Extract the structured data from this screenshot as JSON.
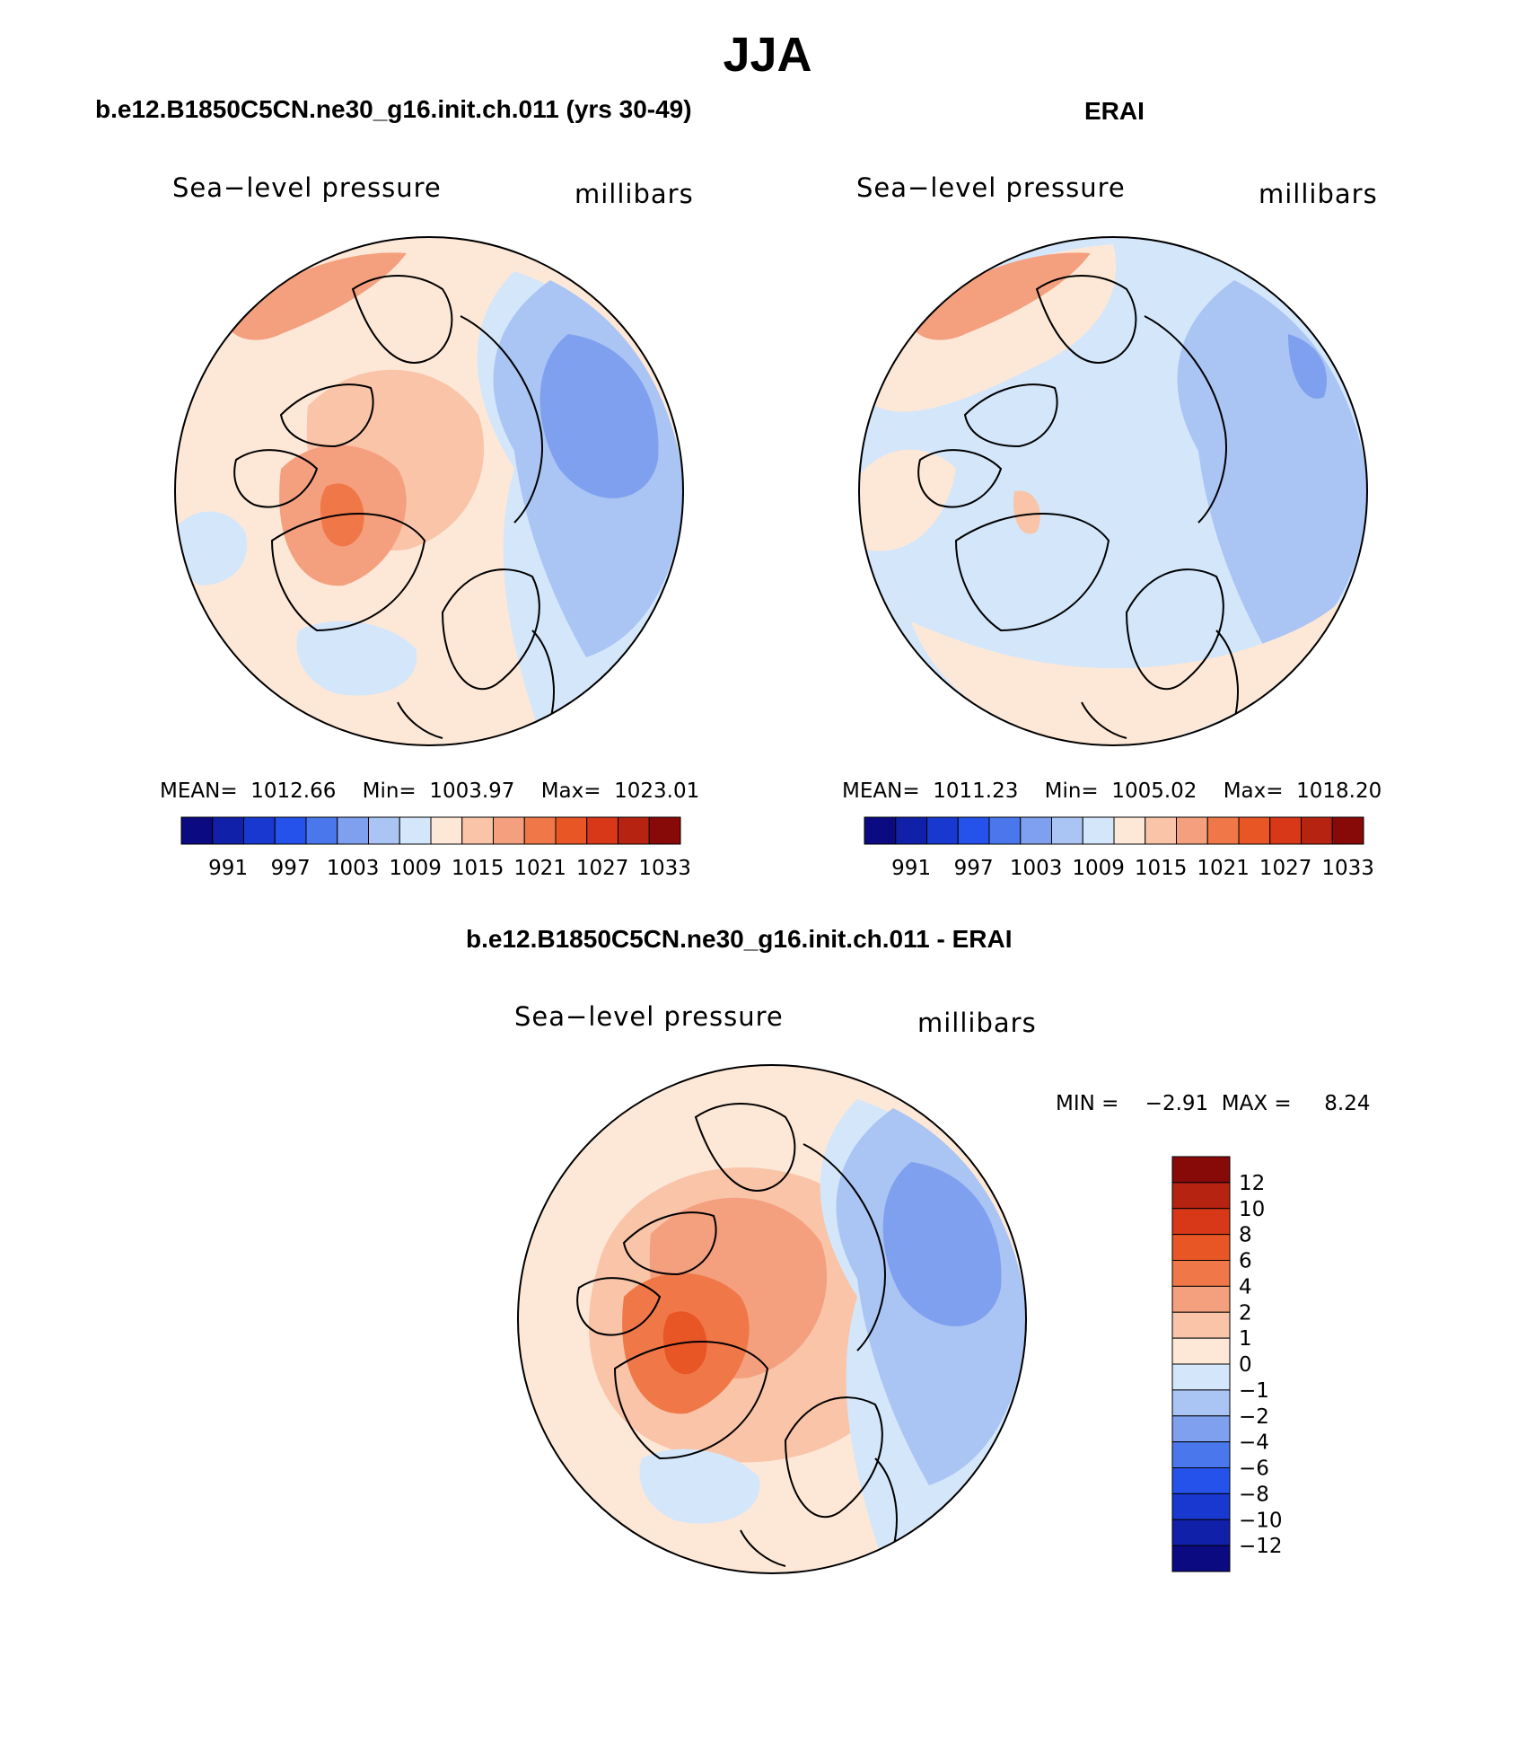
{
  "title": "JJA",
  "panels": [
    {
      "id": "model",
      "header": "b.e12.B1850C5CN.ne30_g16.init.ch.011 (yrs 30-49)",
      "left_label": "Sea−level pressure",
      "right_label": "millibars",
      "stats": {
        "mean_label": "MEAN=",
        "mean": "1012.66",
        "min_label": "Min=",
        "min": "1003.97",
        "max_label": "Max=",
        "max": "1023.01"
      }
    },
    {
      "id": "erai",
      "header": "ERAI",
      "left_label": "Sea−level pressure",
      "right_label": "millibars",
      "stats": {
        "mean_label": "MEAN=",
        "mean": "1011.23",
        "min_label": "Min=",
        "min": "1005.02",
        "max_label": "Max=",
        "max": "1018.20"
      }
    },
    {
      "id": "diff",
      "header": "b.e12.B1850C5CN.ne30_g16.init.ch.011 - ERAI",
      "left_label": "Sea−level pressure",
      "right_label": "millibars",
      "stats": {
        "min_label": "MIN =",
        "min": "−2.91",
        "max_label": "MAX =",
        "max": "8.24"
      }
    }
  ],
  "abs_colorbar": {
    "colors": [
      "#0b0a80",
      "#1020a8",
      "#1838d0",
      "#2552ea",
      "#4a78ec",
      "#7fa0ee",
      "#aac4f4",
      "#d4e6fa",
      "#fde8d8",
      "#f9c4a8",
      "#f4a07e",
      "#f07848",
      "#e85626",
      "#d83818",
      "#b62310",
      "#880a08"
    ],
    "tick_labels": [
      "991",
      "997",
      "1003",
      "1009",
      "1015",
      "1021",
      "1027",
      "1033"
    ]
  },
  "diff_colorbar": {
    "colors": [
      "#880a08",
      "#b62310",
      "#d83818",
      "#e85626",
      "#f07848",
      "#f4a07e",
      "#f9c4a8",
      "#fde8d8",
      "#d4e6fa",
      "#aac4f4",
      "#7fa0ee",
      "#4a78ec",
      "#2552ea",
      "#1838d0",
      "#1020a8",
      "#0b0a80"
    ],
    "tick_labels": [
      "12",
      "10",
      "8",
      "6",
      "4",
      "2",
      "1",
      "0",
      "−1",
      "−2",
      "−4",
      "−6",
      "−8",
      "−10",
      "−12"
    ]
  },
  "fields": {
    "model": {
      "background": "#fde8d8",
      "blobs": [
        {
          "level": "#d4e6fa",
          "shape": "eastern-band"
        },
        {
          "level": "#aac4f4",
          "shape": "east-pacific"
        },
        {
          "level": "#7fa0ee",
          "shape": "east-core"
        },
        {
          "level": "#f9c4a8",
          "shape": "arctic-high"
        },
        {
          "level": "#f4a07e",
          "shape": "greenland-high"
        },
        {
          "level": "#f07848",
          "shape": "greenland-core"
        },
        {
          "level": "#f4a07e",
          "shape": "top-left-rim"
        },
        {
          "level": "#d4e6fa",
          "shape": "left-low"
        },
        {
          "level": "#d4e6fa",
          "shape": "bottom-low"
        }
      ]
    },
    "erai": {
      "background": "#d4e6fa",
      "blobs": [
        {
          "level": "#fde8d8",
          "shape": "top-left-rim-wide"
        },
        {
          "level": "#f4a07e",
          "shape": "top-left-rim"
        },
        {
          "level": "#aac4f4",
          "shape": "east-pacific"
        },
        {
          "level": "#7fa0ee",
          "shape": "east-small"
        },
        {
          "level": "#fde8d8",
          "shape": "bottom-rim"
        },
        {
          "level": "#f9c4a8",
          "shape": "greenland-small"
        },
        {
          "level": "#fde8d8",
          "shape": "left-rim"
        }
      ]
    },
    "diff": {
      "background": "#fde8d8",
      "blobs": [
        {
          "level": "#f9c4a8",
          "shape": "broad-high"
        },
        {
          "level": "#f4a07e",
          "shape": "arctic-high"
        },
        {
          "level": "#f07848",
          "shape": "greenland-high"
        },
        {
          "level": "#e85626",
          "shape": "greenland-core"
        },
        {
          "level": "#d4e6fa",
          "shape": "eastern-band"
        },
        {
          "level": "#aac4f4",
          "shape": "east-pacific"
        },
        {
          "level": "#7fa0ee",
          "shape": "east-core"
        },
        {
          "level": "#d4e6fa",
          "shape": "bottom-low"
        }
      ]
    }
  }
}
